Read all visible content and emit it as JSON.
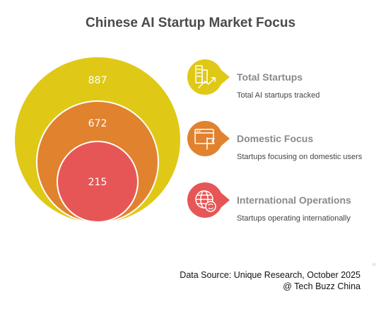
{
  "title": "Chinese AI Startup Market Focus",
  "colors": {
    "total": "#dfc916",
    "domestic": "#e1822f",
    "international": "#e75656",
    "title_text": "#4a4a4a",
    "item_title": "#8a8a8a"
  },
  "circles": {
    "total_value": "887",
    "domestic_value": "672",
    "international_value": "215"
  },
  "items": [
    {
      "title": "Total Startups",
      "description": "Total AI startups tracked",
      "icon": "growth-chart-icon"
    },
    {
      "title": "Domestic Focus",
      "description": "Startups focusing on domestic users",
      "icon": "window-flag-icon"
    },
    {
      "title": "International Operations",
      "description": "Startups operating internationally",
      "icon": "globe-arrows-icon"
    }
  ],
  "source_line1": "Data Source: Unique Research, October 2025",
  "source_line2": "@ Tech Buzz China",
  "corner_mark": "in"
}
